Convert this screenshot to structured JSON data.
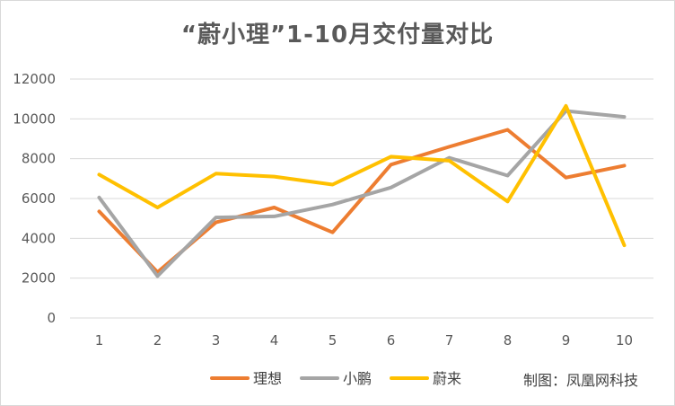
{
  "chart_data": {
    "type": "line",
    "title": "“蔚小理”1-10月交付量对比",
    "categories": [
      "1",
      "2",
      "3",
      "4",
      "5",
      "6",
      "7",
      "8",
      "9",
      "10"
    ],
    "y_ticks": [
      "0",
      "2000",
      "4000",
      "6000",
      "8000",
      "10000",
      "12000"
    ],
    "ylim": [
      0,
      12000
    ],
    "grid": true,
    "legend_position": "bottom",
    "series": [
      {
        "name": "理想",
        "color": "#ED7D31",
        "values": [
          5350,
          2300,
          4800,
          5550,
          4300,
          7700,
          8600,
          9450,
          7050,
          7650
        ]
      },
      {
        "name": "小鹏",
        "color": "#A5A5A5",
        "values": [
          6050,
          2100,
          5050,
          5100,
          5700,
          6550,
          8050,
          7150,
          10400,
          10100
        ]
      },
      {
        "name": "蔚来",
        "color": "#FFC000",
        "values": [
          7200,
          5550,
          7250,
          7100,
          6700,
          8100,
          7900,
          5850,
          10650,
          3650
        ]
      }
    ]
  },
  "credit": "制图：凤凰网科技"
}
